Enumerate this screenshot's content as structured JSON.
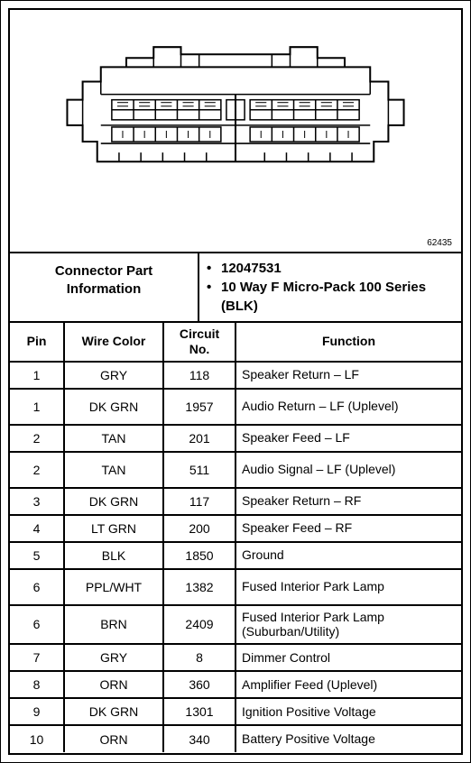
{
  "figure_ref": "62435",
  "connector_header": {
    "left_title": "Connector Part Information",
    "bullet1_part_no": "12047531",
    "bullet2_desc": "10 Way F Micro-Pack 100 Series (BLK)"
  },
  "table": {
    "headers": {
      "pin": "Pin",
      "wire_color": "Wire Color",
      "circuit_no": "Circuit No.",
      "function": "Function"
    },
    "rows": [
      {
        "pin": "1",
        "wire": "GRY",
        "circuit": "118",
        "func": "Speaker Return – LF",
        "tall": false
      },
      {
        "pin": "1",
        "wire": "DK GRN",
        "circuit": "1957",
        "func": "Audio Return – LF (Uplevel)",
        "tall": true
      },
      {
        "pin": "2",
        "wire": "TAN",
        "circuit": "201",
        "func": "Speaker Feed – LF",
        "tall": false
      },
      {
        "pin": "2",
        "wire": "TAN",
        "circuit": "511",
        "func": "Audio Signal – LF (Uplevel)",
        "tall": true
      },
      {
        "pin": "3",
        "wire": "DK GRN",
        "circuit": "117",
        "func": "Speaker Return – RF",
        "tall": false
      },
      {
        "pin": "4",
        "wire": "LT GRN",
        "circuit": "200",
        "func": "Speaker Feed – RF",
        "tall": false
      },
      {
        "pin": "5",
        "wire": "BLK",
        "circuit": "1850",
        "func": "Ground",
        "tall": false
      },
      {
        "pin": "6",
        "wire": "PPL/WHT",
        "circuit": "1382",
        "func": "Fused Interior Park Lamp",
        "tall": true
      },
      {
        "pin": "6",
        "wire": "BRN",
        "circuit": "2409",
        "func": "Fused Interior Park Lamp (Suburban/Utility)",
        "tall": true
      },
      {
        "pin": "7",
        "wire": "GRY",
        "circuit": "8",
        "func": "Dimmer Control",
        "tall": false
      },
      {
        "pin": "8",
        "wire": "ORN",
        "circuit": "360",
        "func": "Amplifier Feed (Uplevel)",
        "tall": false
      },
      {
        "pin": "9",
        "wire": "DK GRN",
        "circuit": "1301",
        "func": "Ignition Positive Voltage",
        "tall": false
      },
      {
        "pin": "10",
        "wire": "ORN",
        "circuit": "340",
        "func": "Battery Positive Voltage",
        "tall": false
      }
    ]
  },
  "diagram_style": {
    "stroke": "#000000",
    "stroke_width_outer": 2,
    "stroke_width_inner": 1.5,
    "fill": "#ffffff"
  }
}
